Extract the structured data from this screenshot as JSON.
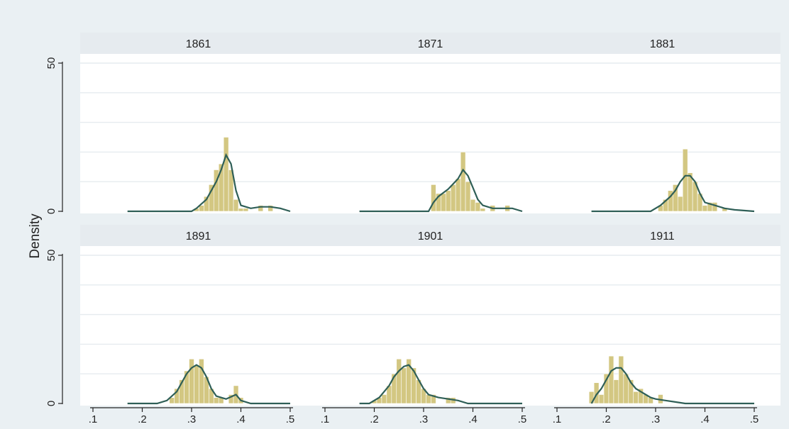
{
  "chart_data": {
    "type": "bar",
    "ylabel": "Density",
    "xlabel": "",
    "xlim": [
      0.1,
      0.5
    ],
    "ylim": [
      0,
      50
    ],
    "xticks": [
      ".1",
      ".2",
      ".3",
      ".4",
      ".5"
    ],
    "yticks": [
      "0",
      "50"
    ],
    "grid": true,
    "colors": {
      "bar": "#d3c782",
      "line": "#2f5f57",
      "strip": "#e6ebef",
      "background": "#eaf0f3"
    },
    "panels": [
      {
        "label": "1861",
        "bar_width": 0.01,
        "bars": [
          [
            0.31,
            1
          ],
          [
            0.32,
            2
          ],
          [
            0.33,
            5
          ],
          [
            0.34,
            9
          ],
          [
            0.35,
            14
          ],
          [
            0.36,
            16
          ],
          [
            0.37,
            25
          ],
          [
            0.38,
            14
          ],
          [
            0.39,
            4
          ],
          [
            0.4,
            1
          ],
          [
            0.41,
            1
          ],
          [
            0.44,
            2
          ],
          [
            0.46,
            2
          ]
        ],
        "density": [
          [
            0.17,
            0
          ],
          [
            0.3,
            0
          ],
          [
            0.31,
            1
          ],
          [
            0.33,
            4
          ],
          [
            0.35,
            10
          ],
          [
            0.36,
            14
          ],
          [
            0.37,
            19
          ],
          [
            0.38,
            16
          ],
          [
            0.39,
            7
          ],
          [
            0.4,
            2
          ],
          [
            0.42,
            1
          ],
          [
            0.44,
            1.5
          ],
          [
            0.46,
            1.5
          ],
          [
            0.48,
            1
          ],
          [
            0.5,
            0
          ]
        ]
      },
      {
        "label": "1871",
        "bar_width": 0.01,
        "bars": [
          [
            0.32,
            9
          ],
          [
            0.33,
            6
          ],
          [
            0.34,
            6
          ],
          [
            0.35,
            7
          ],
          [
            0.36,
            9
          ],
          [
            0.37,
            11
          ],
          [
            0.38,
            20
          ],
          [
            0.39,
            10
          ],
          [
            0.4,
            4
          ],
          [
            0.41,
            3
          ],
          [
            0.42,
            1
          ],
          [
            0.44,
            2
          ],
          [
            0.47,
            2
          ]
        ],
        "density": [
          [
            0.17,
            0
          ],
          [
            0.31,
            0
          ],
          [
            0.32,
            3
          ],
          [
            0.33,
            5
          ],
          [
            0.35,
            7.5
          ],
          [
            0.37,
            11
          ],
          [
            0.38,
            14
          ],
          [
            0.39,
            12
          ],
          [
            0.4,
            8
          ],
          [
            0.41,
            4
          ],
          [
            0.42,
            2
          ],
          [
            0.44,
            1
          ],
          [
            0.46,
            1
          ],
          [
            0.48,
            1
          ],
          [
            0.5,
            0
          ]
        ]
      },
      {
        "label": "1881",
        "bar_width": 0.01,
        "bars": [
          [
            0.31,
            2
          ],
          [
            0.32,
            4
          ],
          [
            0.33,
            7
          ],
          [
            0.34,
            9
          ],
          [
            0.35,
            5
          ],
          [
            0.36,
            21
          ],
          [
            0.37,
            13
          ],
          [
            0.38,
            10
          ],
          [
            0.39,
            6
          ],
          [
            0.4,
            2
          ],
          [
            0.41,
            3
          ],
          [
            0.42,
            3
          ],
          [
            0.44,
            1
          ]
        ],
        "density": [
          [
            0.17,
            0
          ],
          [
            0.29,
            0
          ],
          [
            0.31,
            2
          ],
          [
            0.33,
            5
          ],
          [
            0.34,
            7
          ],
          [
            0.35,
            10
          ],
          [
            0.36,
            12
          ],
          [
            0.37,
            12
          ],
          [
            0.38,
            10
          ],
          [
            0.39,
            6
          ],
          [
            0.4,
            3
          ],
          [
            0.42,
            2
          ],
          [
            0.44,
            1
          ],
          [
            0.46,
            0.5
          ],
          [
            0.5,
            0
          ]
        ]
      },
      {
        "label": "1891",
        "bar_width": 0.01,
        "bars": [
          [
            0.26,
            2
          ],
          [
            0.27,
            5
          ],
          [
            0.28,
            8
          ],
          [
            0.29,
            11
          ],
          [
            0.3,
            15
          ],
          [
            0.31,
            13
          ],
          [
            0.32,
            15
          ],
          [
            0.33,
            9
          ],
          [
            0.34,
            5
          ],
          [
            0.35,
            2
          ],
          [
            0.36,
            2
          ],
          [
            0.38,
            3
          ],
          [
            0.39,
            6
          ],
          [
            0.4,
            2
          ]
        ],
        "density": [
          [
            0.17,
            0
          ],
          [
            0.23,
            0
          ],
          [
            0.25,
            1
          ],
          [
            0.27,
            4
          ],
          [
            0.28,
            7
          ],
          [
            0.29,
            10
          ],
          [
            0.3,
            12
          ],
          [
            0.31,
            13
          ],
          [
            0.32,
            12
          ],
          [
            0.33,
            9
          ],
          [
            0.34,
            5
          ],
          [
            0.35,
            2.5
          ],
          [
            0.37,
            1.5
          ],
          [
            0.39,
            3
          ],
          [
            0.4,
            1
          ],
          [
            0.42,
            0
          ],
          [
            0.5,
            0
          ]
        ]
      },
      {
        "label": "1901",
        "bar_width": 0.01,
        "bars": [
          [
            0.2,
            1
          ],
          [
            0.21,
            2
          ],
          [
            0.22,
            3
          ],
          [
            0.23,
            6
          ],
          [
            0.24,
            10
          ],
          [
            0.25,
            15
          ],
          [
            0.26,
            12
          ],
          [
            0.27,
            15
          ],
          [
            0.28,
            12
          ],
          [
            0.29,
            8
          ],
          [
            0.3,
            5
          ],
          [
            0.31,
            3
          ],
          [
            0.32,
            3
          ],
          [
            0.35,
            2
          ],
          [
            0.36,
            2
          ]
        ],
        "density": [
          [
            0.17,
            0
          ],
          [
            0.19,
            0
          ],
          [
            0.21,
            2
          ],
          [
            0.23,
            6
          ],
          [
            0.24,
            9
          ],
          [
            0.25,
            11
          ],
          [
            0.26,
            12.5
          ],
          [
            0.27,
            13
          ],
          [
            0.28,
            11
          ],
          [
            0.29,
            8
          ],
          [
            0.3,
            5
          ],
          [
            0.31,
            3
          ],
          [
            0.33,
            2
          ],
          [
            0.35,
            1.5
          ],
          [
            0.37,
            1
          ],
          [
            0.39,
            0
          ],
          [
            0.5,
            0
          ]
        ]
      },
      {
        "label": "1911",
        "bar_width": 0.01,
        "bars": [
          [
            0.17,
            4
          ],
          [
            0.18,
            7
          ],
          [
            0.19,
            3
          ],
          [
            0.2,
            10
          ],
          [
            0.21,
            16
          ],
          [
            0.22,
            8
          ],
          [
            0.23,
            16
          ],
          [
            0.24,
            10
          ],
          [
            0.25,
            8
          ],
          [
            0.26,
            4
          ],
          [
            0.27,
            5
          ],
          [
            0.28,
            3
          ],
          [
            0.29,
            2
          ],
          [
            0.31,
            3
          ]
        ],
        "density": [
          [
            0.17,
            0
          ],
          [
            0.18,
            3
          ],
          [
            0.19,
            5
          ],
          [
            0.2,
            8
          ],
          [
            0.21,
            11
          ],
          [
            0.22,
            12
          ],
          [
            0.23,
            12
          ],
          [
            0.24,
            10
          ],
          [
            0.25,
            7
          ],
          [
            0.26,
            5
          ],
          [
            0.27,
            4
          ],
          [
            0.28,
            3
          ],
          [
            0.29,
            2
          ],
          [
            0.3,
            1.5
          ],
          [
            0.32,
            1
          ],
          [
            0.34,
            0.5
          ],
          [
            0.36,
            0
          ],
          [
            0.5,
            0
          ]
        ]
      }
    ]
  }
}
